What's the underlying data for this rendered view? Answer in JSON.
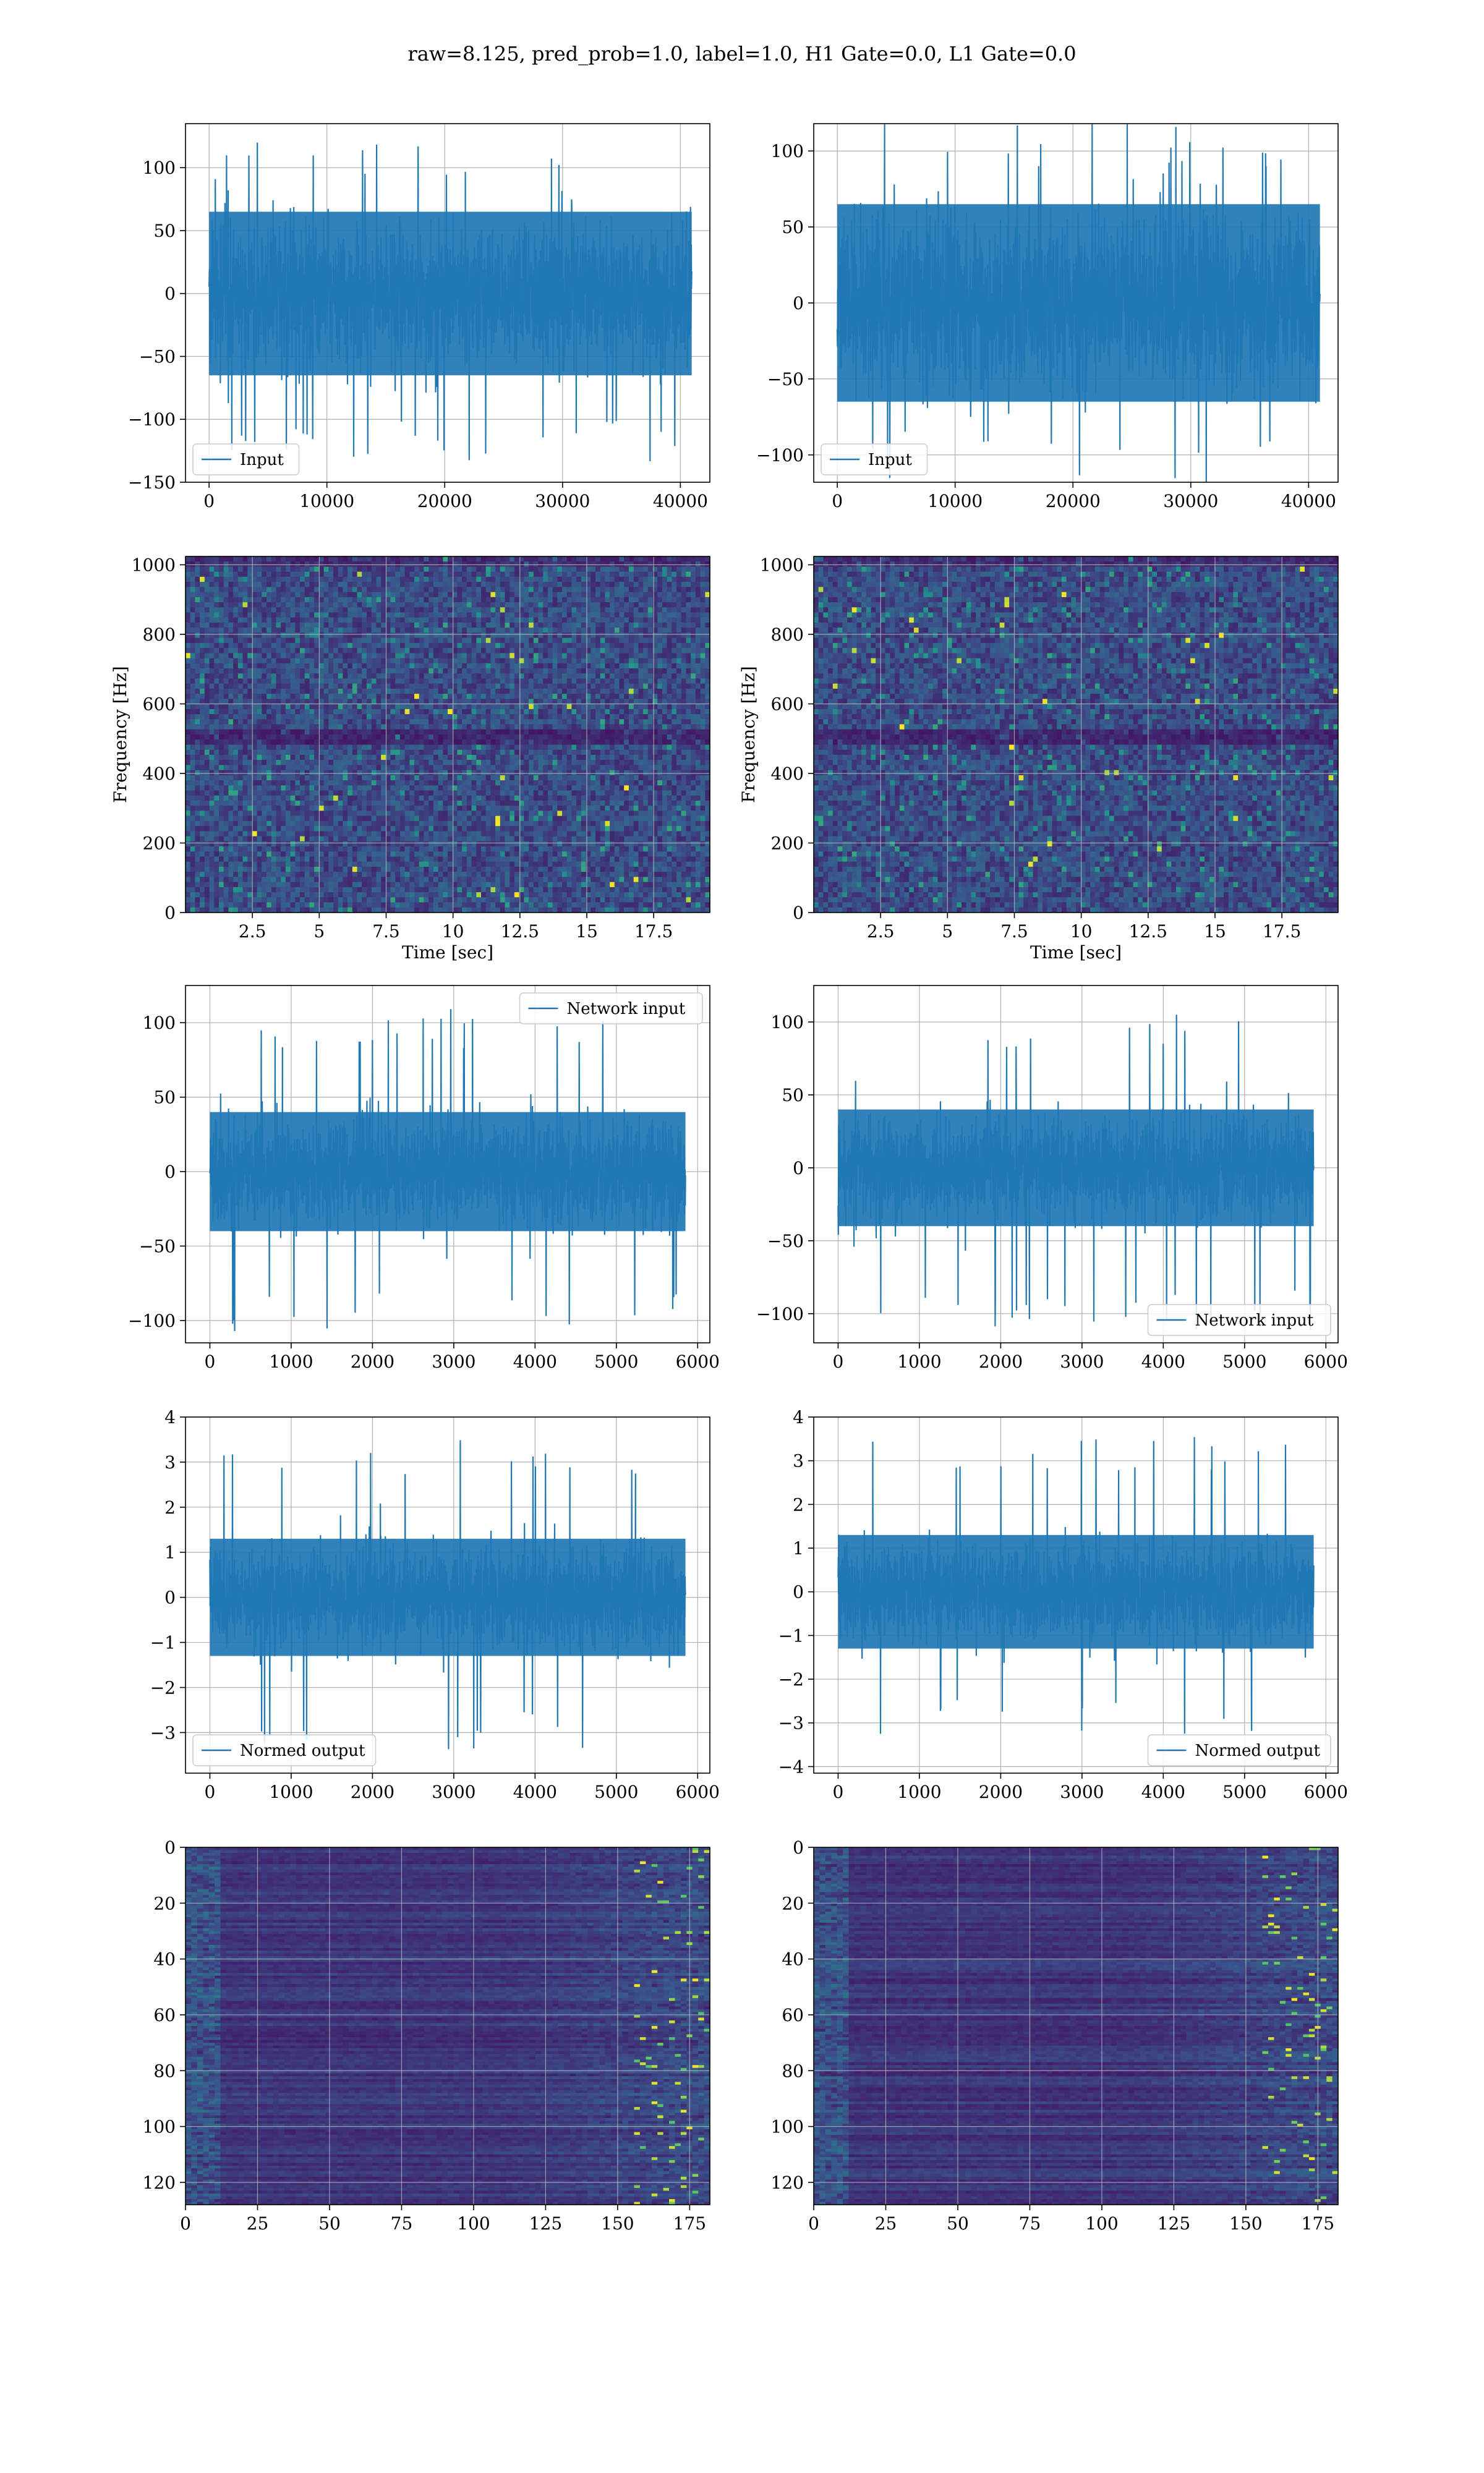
{
  "figure_title": "raw=8.125, pred_prob=1.0, label=1.0, H1 Gate=0.0, L1 Gate=0.0",
  "colors": {
    "line": "#1f77b4",
    "viridis_dark": "#440154",
    "viridis_bg": "#3b1f6b",
    "viridis_mid": "#21918c",
    "viridis_hi": "#5ec962",
    "viridis_peak": "#fde725"
  },
  "chart_data": [
    {
      "id": "left-input",
      "type": "line",
      "xlim": [
        -2000,
        42500
      ],
      "ylim": [
        -150,
        135
      ],
      "xticks": [
        0,
        10000,
        20000,
        30000,
        40000
      ],
      "yticks": [
        -150,
        -100,
        -50,
        0,
        50,
        100
      ],
      "legend": {
        "label": "Input",
        "loc": "lower-left"
      },
      "series": [
        {
          "name": "Input",
          "x_range": [
            0,
            40960
          ],
          "band": [
            -65,
            65
          ],
          "peaks": [
            -135,
            120
          ]
        }
      ]
    },
    {
      "id": "right-input",
      "type": "line",
      "xlim": [
        -2000,
        42500
      ],
      "ylim": [
        -118,
        118
      ],
      "xticks": [
        0,
        10000,
        20000,
        30000,
        40000
      ],
      "yticks": [
        -100,
        -50,
        0,
        50,
        100
      ],
      "legend": {
        "label": "Input",
        "loc": "lower-left"
      },
      "series": [
        {
          "name": "Input",
          "x_range": [
            0,
            40960
          ],
          "band": [
            -65,
            65
          ],
          "peaks": [
            -120,
            120
          ]
        }
      ]
    },
    {
      "id": "left-spectrogram",
      "type": "heatmap",
      "xlim": [
        0,
        19.6
      ],
      "ylim": [
        0,
        1024
      ],
      "xticks": [
        2.5,
        5.0,
        7.5,
        10.0,
        12.5,
        15.0,
        17.5
      ],
      "yticks": [
        0,
        200,
        400,
        600,
        800,
        1000
      ],
      "xlabel": "Time [sec]",
      "ylabel": "Frequency [Hz]"
    },
    {
      "id": "right-spectrogram",
      "type": "heatmap",
      "xlim": [
        0,
        19.6
      ],
      "ylim": [
        0,
        1024
      ],
      "xticks": [
        2.5,
        5.0,
        7.5,
        10.0,
        12.5,
        15.0,
        17.5
      ],
      "yticks": [
        0,
        200,
        400,
        600,
        800,
        1000
      ],
      "xlabel": "Time [sec]",
      "ylabel": "Frequency [Hz]"
    },
    {
      "id": "left-network-input",
      "type": "line",
      "xlim": [
        -300,
        6150
      ],
      "ylim": [
        -115,
        125
      ],
      "xticks": [
        0,
        1000,
        2000,
        3000,
        4000,
        5000,
        6000
      ],
      "yticks": [
        -100,
        -50,
        0,
        50,
        100
      ],
      "legend": {
        "label": "Network input",
        "loc": "upper-right"
      },
      "series": [
        {
          "name": "Network input",
          "x_range": [
            0,
            5850
          ],
          "band": [
            -40,
            40
          ],
          "peaks": [
            -108,
            110
          ]
        }
      ]
    },
    {
      "id": "right-network-input",
      "type": "line",
      "xlim": [
        -300,
        6150
      ],
      "ylim": [
        -120,
        125
      ],
      "xticks": [
        0,
        1000,
        2000,
        3000,
        4000,
        5000,
        6000
      ],
      "yticks": [
        -100,
        -50,
        0,
        50,
        100
      ],
      "legend": {
        "label": "Network input",
        "loc": "lower-right"
      },
      "series": [
        {
          "name": "Network input",
          "x_range": [
            0,
            5850
          ],
          "band": [
            -40,
            40
          ],
          "peaks": [
            -112,
            110
          ]
        }
      ]
    },
    {
      "id": "left-normed-output",
      "type": "line",
      "xlim": [
        -300,
        6150
      ],
      "ylim": [
        -3.9,
        4.0
      ],
      "xticks": [
        0,
        1000,
        2000,
        3000,
        4000,
        5000,
        6000
      ],
      "yticks": [
        -3,
        -2,
        -1,
        0,
        1,
        2,
        3,
        4
      ],
      "legend": {
        "label": "Normed output",
        "loc": "lower-left"
      },
      "series": [
        {
          "name": "Normed output",
          "x_range": [
            0,
            5850
          ],
          "band": [
            -1.3,
            1.3
          ],
          "peaks": [
            -3.4,
            3.6
          ]
        }
      ]
    },
    {
      "id": "right-normed-output",
      "type": "line",
      "xlim": [
        -300,
        6150
      ],
      "ylim": [
        -4.15,
        4.0
      ],
      "xticks": [
        0,
        1000,
        2000,
        3000,
        4000,
        5000,
        6000
      ],
      "yticks": [
        -4,
        -3,
        -2,
        -1,
        0,
        1,
        2,
        3,
        4
      ],
      "legend": {
        "label": "Normed output",
        "loc": "lower-right"
      },
      "series": [
        {
          "name": "Normed output",
          "x_range": [
            0,
            5850
          ],
          "band": [
            -1.3,
            1.3
          ],
          "peaks": [
            -3.3,
            3.6
          ]
        }
      ]
    },
    {
      "id": "left-feature-map",
      "type": "heatmap",
      "xlim": [
        0,
        182
      ],
      "ylim": [
        128,
        0
      ],
      "xticks": [
        0,
        25,
        50,
        75,
        100,
        125,
        150,
        175
      ],
      "yticks": [
        0,
        20,
        40,
        60,
        80,
        100,
        120
      ]
    },
    {
      "id": "right-feature-map",
      "type": "heatmap",
      "xlim": [
        0,
        182
      ],
      "ylim": [
        128,
        0
      ],
      "xticks": [
        0,
        25,
        50,
        75,
        100,
        125,
        150,
        175
      ],
      "yticks": [
        0,
        20,
        40,
        60,
        80,
        100,
        120
      ]
    }
  ]
}
